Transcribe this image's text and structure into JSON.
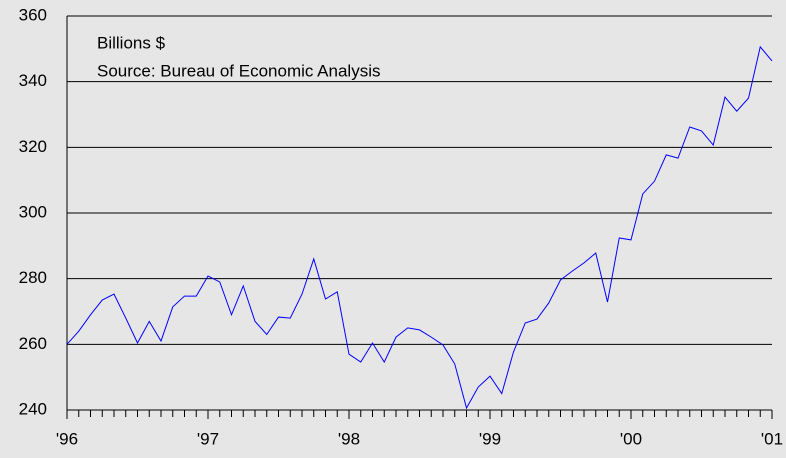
{
  "chart_data": {
    "type": "line",
    "annotations": [
      "Billions $",
      "Source: Bureau of Economic Analysis"
    ],
    "categories": [
      "'96",
      null,
      null,
      null,
      null,
      null,
      null,
      null,
      null,
      null,
      null,
      null,
      "'97",
      null,
      null,
      null,
      null,
      null,
      null,
      null,
      null,
      null,
      null,
      null,
      "'98",
      null,
      null,
      null,
      null,
      null,
      null,
      null,
      null,
      null,
      null,
      null,
      "'99",
      null,
      null,
      null,
      null,
      null,
      null,
      null,
      null,
      null,
      null,
      null,
      "'00",
      null,
      null,
      null,
      null,
      null,
      null,
      null,
      null,
      null,
      null,
      null,
      "'01"
    ],
    "values": [
      260,
      264,
      269,
      273.5,
      275.3,
      268,
      260.4,
      267,
      261,
      271.4,
      274.7,
      274.7,
      280.8,
      279,
      269,
      277.8,
      267,
      263,
      268.3,
      268,
      275.3,
      286,
      273.8,
      276,
      257,
      254.6,
      260.4,
      254.6,
      262.2,
      265,
      264.4,
      262.2,
      259.8,
      254,
      240.6,
      247,
      250.3,
      245,
      257.7,
      266.5,
      267.7,
      272.6,
      279.6,
      282.3,
      284.8,
      287.8,
      272.9,
      292.4,
      291.8,
      305.8,
      309.7,
      317.7,
      316.7,
      326.2,
      325,
      320.7,
      335.3,
      331,
      335,
      350.6,
      346.3
    ],
    "color": "#0000ff",
    "ylim": [
      240,
      360
    ],
    "yticks": [
      240,
      260,
      280,
      300,
      320,
      340,
      360
    ],
    "grid": true
  }
}
